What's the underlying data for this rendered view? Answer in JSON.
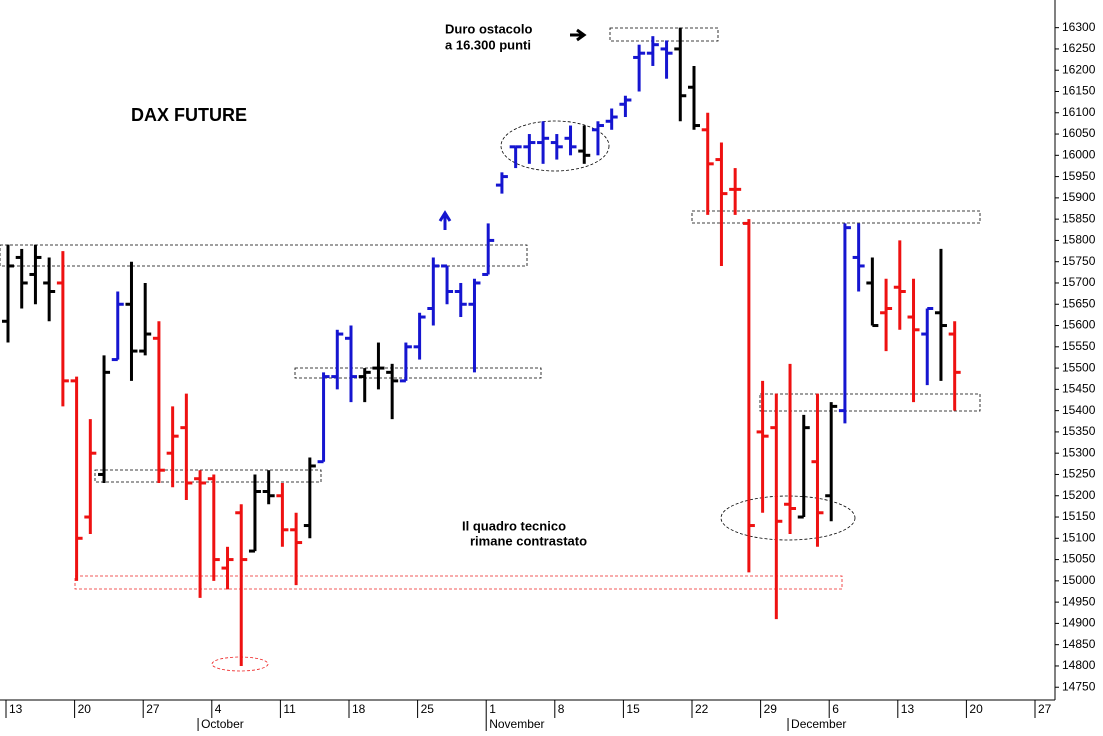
{
  "chart_data": {
    "type": "ohlc",
    "title": "DAX FUTURE",
    "annotations": [
      [
        "Duro ostacolo",
        "a 16.300 punti"
      ],
      [
        "Il quadro tecnico",
        "rimane contrastato"
      ]
    ],
    "categories": [
      "13",
      null,
      null,
      null,
      null,
      "20",
      null,
      null,
      null,
      null,
      "27",
      null,
      null,
      null,
      null,
      "4",
      null,
      null,
      null,
      null,
      "11",
      null,
      null,
      null,
      null,
      "18",
      null,
      null,
      null,
      null,
      "25",
      null,
      null,
      null,
      null,
      "1",
      null,
      null,
      null,
      null,
      "8",
      null,
      null,
      null,
      null,
      "15",
      null,
      null,
      null,
      null,
      "22",
      null,
      null,
      null,
      null,
      "29",
      null,
      null,
      null,
      null,
      "6",
      null,
      null,
      null,
      null,
      "13",
      null,
      null,
      null,
      null,
      "20",
      null,
      null,
      null,
      null,
      "27",
      null
    ],
    "months": [
      {
        "label": "October",
        "category": 14
      },
      {
        "label": "November",
        "category": 35
      },
      {
        "label": "December",
        "category": 57
      }
    ],
    "open": [
      15610,
      15760,
      15720,
      15700,
      15700,
      15470,
      15150,
      15250,
      15520,
      15650,
      15540,
      15570,
      15300,
      15360,
      15240,
      15240,
      15030,
      15160,
      15070,
      15210,
      15200,
      15120,
      15130,
      15280,
      15480,
      15570,
      15480,
      15500,
      15490,
      15470,
      15550,
      15640,
      15740,
      15680,
      15650,
      15720,
      15930,
      16020,
      16020,
      16030,
      16030,
      16040,
      16010,
      16060,
      16080,
      16120,
      16230,
      16240,
      16250,
      16250,
      16160,
      16060,
      15990,
      15920,
      15840,
      15350,
      15360,
      15180,
      15150,
      15280,
      15200,
      15400,
      15760,
      15700,
      15630,
      15690,
      15620,
      15580,
      15630,
      15580,
      null,
      null,
      null,
      null,
      null,
      null,
      null
    ],
    "high": [
      15790,
      15780,
      15790,
      15760,
      15775,
      15480,
      15380,
      15530,
      15680,
      15750,
      15700,
      15610,
      15410,
      15440,
      15260,
      15250,
      15080,
      15180,
      15250,
      15260,
      15230,
      15160,
      15290,
      15490,
      15590,
      15600,
      15500,
      15560,
      15510,
      15560,
      15630,
      15760,
      15740,
      15700,
      15710,
      15840,
      15960,
      16020,
      16050,
      16080,
      16050,
      16070,
      16070,
      16080,
      16110,
      16140,
      16260,
      16280,
      16270,
      16300,
      16210,
      16100,
      16030,
      15970,
      15850,
      15470,
      15440,
      15510,
      15390,
      15440,
      15420,
      15840,
      15840,
      15760,
      15710,
      15800,
      15710,
      15640,
      15780,
      15610,
      null,
      null,
      null,
      null,
      null,
      null,
      null
    ],
    "low": [
      15560,
      15640,
      15650,
      15610,
      15410,
      15000,
      15110,
      15230,
      15520,
      15470,
      15530,
      15230,
      15220,
      15190,
      14960,
      15000,
      14980,
      14800,
      15070,
      15180,
      15080,
      14990,
      15100,
      15280,
      15450,
      15420,
      15420,
      15450,
      15380,
      15470,
      15520,
      15600,
      15650,
      15620,
      15490,
      15720,
      15910,
      15970,
      15980,
      15980,
      15990,
      16000,
      15980,
      16000,
      16060,
      16090,
      16150,
      16210,
      16180,
      16080,
      16060,
      15860,
      15740,
      15860,
      15020,
      15160,
      14910,
      15110,
      15150,
      15080,
      15140,
      15370,
      15680,
      15600,
      15540,
      15590,
      15420,
      15460,
      15470,
      15400,
      null,
      null,
      null,
      null,
      null,
      null,
      null
    ],
    "close": [
      15740,
      15700,
      15760,
      15680,
      15470,
      15100,
      15300,
      15490,
      15650,
      15540,
      15580,
      15260,
      15340,
      15230,
      15230,
      15050,
      15050,
      15050,
      15210,
      15200,
      15120,
      15090,
      15270,
      15480,
      15580,
      15480,
      15490,
      15500,
      15470,
      15550,
      15620,
      15740,
      15680,
      15650,
      15700,
      15800,
      15950,
      16020,
      16030,
      16040,
      16020,
      16020,
      16000,
      16070,
      16090,
      16130,
      16240,
      16260,
      16240,
      16140,
      16070,
      15980,
      15910,
      15920,
      15130,
      15340,
      15140,
      15170,
      15360,
      15160,
      15410,
      15830,
      15740,
      15600,
      15640,
      15680,
      15590,
      15640,
      15600,
      15490,
      null,
      null,
      null,
      null,
      null,
      null,
      null
    ],
    "colors": [
      "#000000",
      "#000000",
      "#000000",
      "#000000",
      "#ee1111",
      "#ee1111",
      "#ee1111",
      "#000000",
      "#1515d0",
      "#000000",
      "#000000",
      "#ee1111",
      "#ee1111",
      "#ee1111",
      "#ee1111",
      "#ee1111",
      "#ee1111",
      "#ee1111",
      "#000000",
      "#000000",
      "#ee1111",
      "#ee1111",
      "#000000",
      "#1515d0",
      "#1515d0",
      "#1515d0",
      "#000000",
      "#000000",
      "#000000",
      "#1515d0",
      "#1515d0",
      "#1515d0",
      "#1515d0",
      "#1515d0",
      "#1515d0",
      "#1515d0",
      "#1515d0",
      "#1515d0",
      "#1515d0",
      "#1515d0",
      "#1515d0",
      "#1515d0",
      "#000000",
      "#1515d0",
      "#1515d0",
      "#1515d0",
      "#1515d0",
      "#1515d0",
      "#1515d0",
      "#000000",
      "#000000",
      "#ee1111",
      "#ee1111",
      "#ee1111",
      "#ee1111",
      "#ee1111",
      "#ee1111",
      "#ee1111",
      "#000000",
      "#ee1111",
      "#000000",
      "#1515d0",
      "#1515d0",
      "#000000",
      "#ee1111",
      "#ee1111",
      "#ee1111",
      "#1515d0",
      "#000000",
      "#ee1111",
      null,
      null,
      null,
      null,
      null,
      null,
      null
    ],
    "ylim": [
      14720,
      16365
    ],
    "yticks": [
      14750,
      14800,
      14850,
      14900,
      14950,
      15000,
      15050,
      15100,
      15150,
      15200,
      15250,
      15300,
      15350,
      15400,
      15450,
      15500,
      15550,
      15600,
      15650,
      15700,
      15750,
      15800,
      15850,
      15900,
      15950,
      16000,
      16050,
      16100,
      16150,
      16200,
      16250,
      16300
    ]
  }
}
